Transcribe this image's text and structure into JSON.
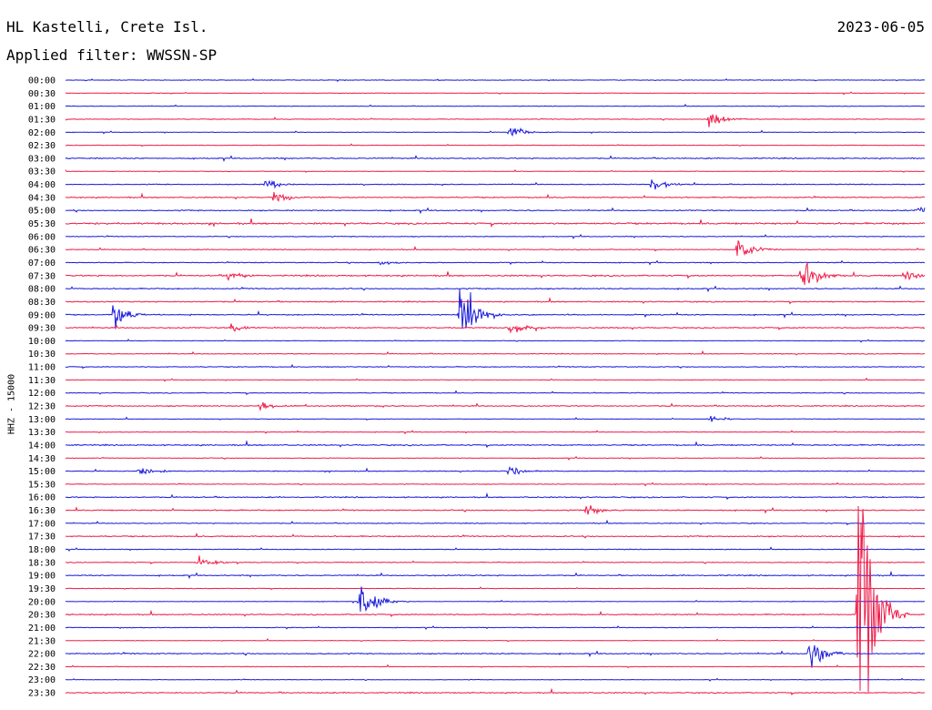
{
  "header": {
    "station": "HL Kastelli, Crete Isl.",
    "date": "2023-06-05",
    "filter": "Applied filter: WWSSN-SP"
  },
  "channel_label": "HHZ - 15000",
  "colors": {
    "even": "#1a1adc",
    "odd": "#ee1c48",
    "text": "#000000",
    "background": "#ffffff"
  },
  "chart_data": {
    "type": "line",
    "title": "HL Kastelli, Crete Isl.",
    "subtitle": "Applied filter: WWSSN-SP",
    "ylabel": "HHZ - 15000",
    "xlabel": "",
    "grid": false,
    "legend": "none",
    "row_labels": [
      "00:00",
      "00:30",
      "01:00",
      "01:30",
      "02:00",
      "02:30",
      "03:00",
      "03:30",
      "04:00",
      "04:30",
      "05:00",
      "05:30",
      "06:00",
      "06:30",
      "07:00",
      "07:30",
      "08:00",
      "08:30",
      "09:00",
      "09:30",
      "10:00",
      "10:30",
      "11:00",
      "11:30",
      "12:00",
      "12:30",
      "13:00",
      "13:30",
      "14:00",
      "14:30",
      "15:00",
      "15:30",
      "16:00",
      "16:30",
      "17:00",
      "17:30",
      "18:00",
      "18:30",
      "19:00",
      "19:30",
      "20:00",
      "20:30",
      "21:00",
      "21:30",
      "22:00",
      "22:30",
      "23:00",
      "23:30"
    ],
    "row_colors": [
      "blue",
      "red"
    ],
    "row_minutes": 30,
    "noise_level": [
      1,
      1,
      1,
      1.3,
      1,
      1,
      2,
      1,
      1.5,
      2,
      2,
      3,
      1.5,
      1.5,
      1.5,
      2.5,
      2,
      2,
      2,
      2,
      1,
      1.5,
      1.5,
      1,
      1.5,
      2,
      1,
      1.2,
      2.2,
      1.2,
      1.5,
      1.2,
      2,
      2,
      1.5,
      2,
      1.2,
      1.5,
      2,
      1,
      1,
      2,
      1.2,
      1,
      2,
      1,
      1,
      2
    ],
    "events": [
      {
        "row": 3,
        "minute": 22.5,
        "amplitude": 9
      },
      {
        "row": 4,
        "minute": 15.5,
        "amplitude": 9
      },
      {
        "row": 8,
        "minute": 7,
        "amplitude": 6
      },
      {
        "row": 8,
        "minute": 20.5,
        "amplitude": 9
      },
      {
        "row": 9,
        "minute": 7.3,
        "amplitude": 7
      },
      {
        "row": 10,
        "minute": 29.8,
        "amplitude": 7
      },
      {
        "row": 13,
        "minute": 23.5,
        "amplitude": 17
      },
      {
        "row": 14,
        "minute": 11,
        "amplitude": 4
      },
      {
        "row": 15,
        "minute": 5.7,
        "amplitude": 5
      },
      {
        "row": 15,
        "minute": 25.7,
        "amplitude": 22
      },
      {
        "row": 15,
        "minute": 29.3,
        "amplitude": 6
      },
      {
        "row": 18,
        "minute": 1.7,
        "amplitude": 14
      },
      {
        "row": 18,
        "minute": 13.8,
        "amplitude": 43
      },
      {
        "row": 19,
        "minute": 5.8,
        "amplitude": 6
      },
      {
        "row": 19,
        "minute": 15.5,
        "amplitude": 8
      },
      {
        "row": 25,
        "minute": 6.8,
        "amplitude": 5
      },
      {
        "row": 26,
        "minute": 22.5,
        "amplitude": 4
      },
      {
        "row": 30,
        "minute": 2.6,
        "amplitude": 6
      },
      {
        "row": 30,
        "minute": 15.5,
        "amplitude": 5
      },
      {
        "row": 33,
        "minute": 18.2,
        "amplitude": 6
      },
      {
        "row": 37,
        "minute": 4.6,
        "amplitude": 10
      },
      {
        "row": 40,
        "minute": 10.3,
        "amplitude": 25
      },
      {
        "row": 41,
        "minute": 27.7,
        "amplitude": 150
      },
      {
        "row": 44,
        "minute": 26,
        "amplitude": 18
      }
    ]
  }
}
